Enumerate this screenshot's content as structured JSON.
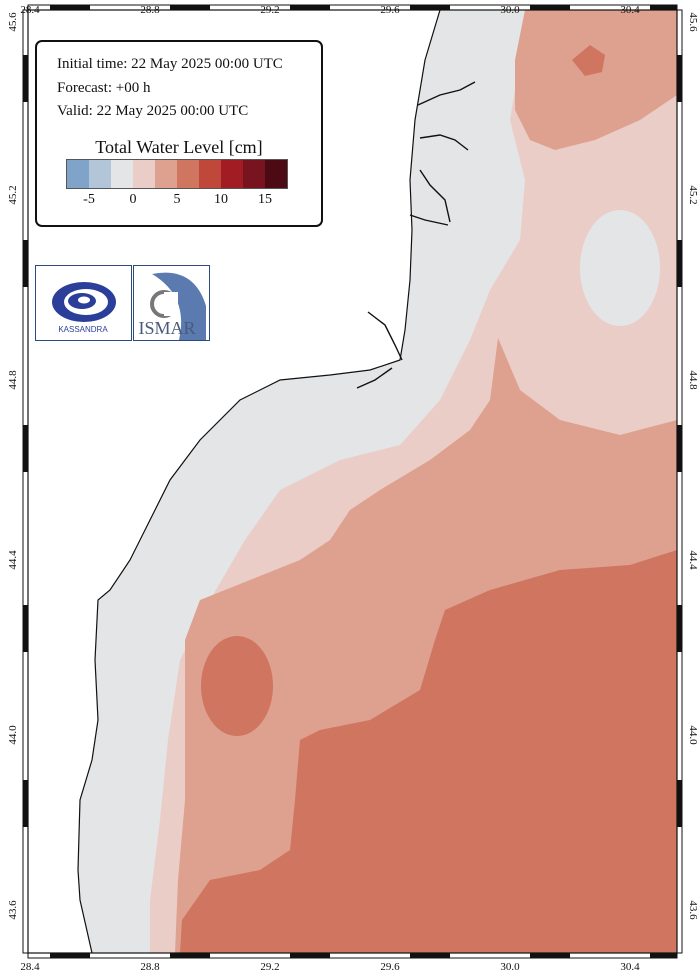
{
  "map": {
    "info": {
      "initial_time": "Initial time: 22 May 2025 00:00 UTC",
      "forecast": "Forecast: +00 h",
      "valid": "Valid: 22 May 2025 00:00 UTC"
    },
    "legend": {
      "title": "Total Water Level [cm]",
      "colors": [
        "#7fa3c9",
        "#b3c5d8",
        "#e4e5e7",
        "#ebcdc7",
        "#dea08f",
        "#cf7560",
        "#c0483a",
        "#a11d23",
        "#78141f",
        "#4b0a14"
      ],
      "ticks": [
        "-5",
        "0",
        "5",
        "10",
        "15"
      ]
    },
    "axes": {
      "lon_ticks": [
        "28.4",
        "28.8",
        "29.2",
        "29.6",
        "30.0",
        "30.4"
      ],
      "lat_ticks": [
        "45.6",
        "45.2",
        "44.8",
        "44.4",
        "44.0",
        "43.6"
      ]
    },
    "logos": {
      "left_text": "KASSANDRA",
      "right_text": "ISMAR"
    },
    "colors": {
      "land": "#ffffff",
      "neg5": "#7fa3c9",
      "neg2": "#b3c5d8",
      "zero": "#e4e5e7",
      "pos2": "#ebcdc7",
      "pos5": "#dea08f",
      "pos7": "#cf7560",
      "frame": "#111111"
    }
  }
}
